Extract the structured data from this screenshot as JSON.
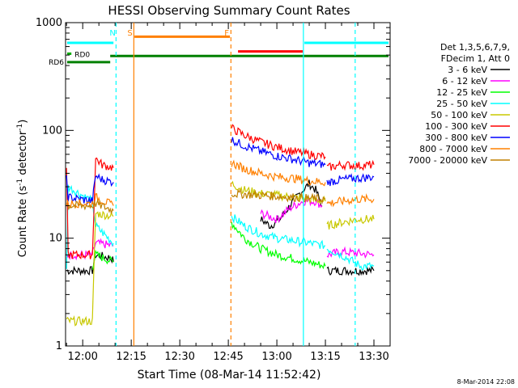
{
  "chart_data": {
    "type": "line",
    "title": "HESSI Observing Summary Count Rates",
    "xlabel": "Start Time (08-Mar-14 11:52:42)",
    "ylabel_main": "Count Rate (s",
    "ylabel_sup1": "-1",
    "ylabel_mid": " detector",
    "ylabel_sup2": "-1",
    "ylabel_end": ")",
    "y_scale": "log",
    "ylim": [
      1,
      1000
    ],
    "xlim_minutes": [
      -5.3,
      95.0
    ],
    "x_ticks": [
      {
        "label": "12:00",
        "minutes": 0
      },
      {
        "label": "12:15",
        "minutes": 15
      },
      {
        "label": "12:30",
        "minutes": 30
      },
      {
        "label": "12:45",
        "minutes": 45
      },
      {
        "label": "13:00",
        "minutes": 60
      },
      {
        "label": "13:15",
        "minutes": 75
      },
      {
        "label": "13:30",
        "minutes": 90
      }
    ],
    "y_ticks": [
      {
        "label": "1",
        "value": 1
      },
      {
        "label": "10",
        "value": 10
      },
      {
        "label": "100",
        "value": 100
      },
      {
        "label": "1000",
        "value": 1000
      }
    ],
    "legend_position": "right",
    "legend_header": [
      "Det 1,3,5,6,7,9,",
      "FDecim 1, Att 0"
    ],
    "series": [
      {
        "name": "3 - 6 keV",
        "color": "#000000",
        "segments": [
          [
            [
              -5,
              5
            ],
            [
              3,
              5
            ],
            [
              4,
              7
            ],
            [
              9,
              6.5
            ],
            [
              9.5,
              6
            ]
          ],
          [
            [
              55,
              15
            ],
            [
              58,
              13
            ],
            [
              61,
              15
            ],
            [
              64,
              20
            ],
            [
              67,
              26
            ],
            [
              70,
              32
            ],
            [
              72,
              28
            ],
            [
              74,
              20
            ]
          ],
          [
            [
              75.5,
              5
            ],
            [
              90,
              5
            ]
          ]
        ]
      },
      {
        "name": "6 - 12 keV",
        "color": "#ff00ff",
        "segments": [
          [
            [
              -5,
              7
            ],
            [
              3,
              7
            ],
            [
              4,
              9
            ],
            [
              9.5,
              8.5
            ]
          ],
          [
            [
              55,
              17
            ],
            [
              60,
              15
            ],
            [
              64,
              19
            ],
            [
              68,
              22
            ],
            [
              72,
              22
            ],
            [
              74,
              20
            ]
          ],
          [
            [
              75.5,
              7
            ],
            [
              80,
              7.5
            ],
            [
              90,
              7
            ]
          ]
        ]
      },
      {
        "name": "12 - 25 keV",
        "color": "#00ff00",
        "segments": [
          [
            [
              3,
              5.5
            ],
            [
              4,
              7
            ],
            [
              9.5,
              6
            ]
          ],
          [
            [
              46,
              14
            ],
            [
              50,
              10
            ],
            [
              55,
              8
            ],
            [
              60,
              7
            ],
            [
              65,
              6.5
            ],
            [
              70,
              6
            ],
            [
              75,
              5.5
            ]
          ]
        ]
      },
      {
        "name": "25 - 50 keV",
        "color": "#00ffff",
        "segments": [
          [
            [
              -5,
              5
            ],
            [
              -4.5,
              30
            ],
            [
              3,
              22
            ],
            [
              4,
              13
            ],
            [
              9.5,
              9
            ]
          ],
          [
            [
              46,
              16
            ],
            [
              50,
              13
            ],
            [
              55,
              11
            ],
            [
              60,
              10
            ],
            [
              65,
              9.5
            ],
            [
              70,
              9
            ],
            [
              75,
              8.5
            ]
          ],
          [
            [
              75.5,
              8
            ],
            [
              80,
              7
            ],
            [
              86,
              5.5
            ],
            [
              90,
              5.5
            ]
          ]
        ]
      },
      {
        "name": "50 - 100 keV",
        "color": "#c8c800",
        "segments": [
          [
            [
              -5,
              1.7
            ],
            [
              3,
              1.7
            ],
            [
              4,
              17
            ],
            [
              9.5,
              16
            ]
          ],
          [
            [
              46,
              32
            ],
            [
              50,
              28
            ],
            [
              55,
              26
            ],
            [
              60,
              25
            ],
            [
              65,
              24
            ],
            [
              70,
              23
            ],
            [
              75,
              22
            ]
          ],
          [
            [
              75.5,
              13
            ],
            [
              80,
              14
            ],
            [
              85,
              15
            ],
            [
              90,
              15
            ]
          ]
        ]
      },
      {
        "name": "100 - 300 keV",
        "color": "#ff0000",
        "segments": [
          [
            [
              -5,
              45
            ],
            [
              -4.5,
              7
            ],
            [
              3,
              7
            ],
            [
              4,
              55
            ],
            [
              6,
              48
            ],
            [
              9.5,
              45
            ]
          ],
          [
            [
              46,
              105
            ],
            [
              50,
              90
            ],
            [
              55,
              78
            ],
            [
              60,
              70
            ],
            [
              65,
              64
            ],
            [
              70,
              60
            ],
            [
              75,
              57
            ]
          ],
          [
            [
              75.5,
              45
            ],
            [
              80,
              48
            ],
            [
              85,
              47
            ],
            [
              90,
              48
            ]
          ]
        ]
      },
      {
        "name": "300 - 800 keV",
        "color": "#0000ff",
        "segments": [
          [
            [
              -5,
              35
            ],
            [
              -4.5,
              24
            ],
            [
              3,
              22
            ],
            [
              4,
              38
            ],
            [
              6,
              35
            ],
            [
              9.5,
              33
            ]
          ],
          [
            [
              46,
              82
            ],
            [
              50,
              72
            ],
            [
              55,
              64
            ],
            [
              60,
              58
            ],
            [
              65,
              54
            ],
            [
              70,
              50
            ],
            [
              75,
              48
            ]
          ],
          [
            [
              75.5,
              33
            ],
            [
              80,
              35
            ],
            [
              85,
              36
            ],
            [
              90,
              37
            ]
          ]
        ]
      },
      {
        "name": "800 - 7000 keV",
        "color": "#ff8000",
        "segments": [
          [
            [
              -5,
              21
            ],
            [
              3,
              21
            ],
            [
              4,
              24
            ],
            [
              9.5,
              20
            ]
          ],
          [
            [
              46,
              50
            ],
            [
              50,
              44
            ],
            [
              55,
              40
            ],
            [
              60,
              37
            ],
            [
              65,
              36
            ],
            [
              70,
              34
            ],
            [
              75,
              33
            ]
          ],
          [
            [
              75.5,
              21
            ],
            [
              80,
              22
            ],
            [
              85,
              23
            ],
            [
              90,
              23
            ]
          ]
        ]
      },
      {
        "name": "7000 - 20000 keV",
        "color": "#c08000",
        "segments": [
          [
            [
              -5,
              20
            ],
            [
              3,
              20
            ],
            [
              4,
              21
            ],
            [
              9.5,
              18
            ]
          ],
          [
            [
              46,
              26
            ],
            [
              55,
              25
            ],
            [
              65,
              24
            ],
            [
              75,
              23
            ]
          ]
        ]
      }
    ],
    "markers": [
      {
        "label": "N",
        "kind": "dashed",
        "color": "#00ffff",
        "at_minutes": 10.3
      },
      {
        "label": "S",
        "kind": "solid",
        "color": "#ff8000",
        "at_minutes": 15.8
      },
      {
        "label": "F",
        "kind": "dashed",
        "color": "#ff8000",
        "at_minutes": 45.8
      },
      {
        "label": "",
        "kind": "solid",
        "color": "#00ffff",
        "at_minutes": 68.2
      },
      {
        "label": "",
        "kind": "dashed",
        "color": "#00ffff",
        "at_minutes": 84.2
      }
    ],
    "bars": [
      {
        "label": "",
        "color": "#00ffff",
        "start_minutes": -4.8,
        "end_minutes": 9.5,
        "level": 650
      },
      {
        "label": "",
        "color": "#00ffff",
        "start_minutes": 68.5,
        "end_minutes": 94.5,
        "level": 650
      },
      {
        "label": "S",
        "color": "#ff8000",
        "start_minutes": 16.0,
        "end_minutes": 45.5,
        "level": 740
      },
      {
        "label": "F",
        "color": "#ff0000",
        "start_minutes": 48.0,
        "end_minutes": 68.0,
        "level": 540
      },
      {
        "label": "RD0",
        "color": "#00aa00",
        "start_minutes": -4.8,
        "end_minutes": -3.5,
        "level": 515
      },
      {
        "label": "RD0",
        "color": "#008000",
        "start_minutes": 8.5,
        "end_minutes": 94.5,
        "level": 490
      },
      {
        "label": "RD6",
        "color": "#008000",
        "start_minutes": -4.8,
        "end_minutes": 8.5,
        "level": 430
      }
    ]
  },
  "footer_date": "8-Mar-2014 22:08"
}
